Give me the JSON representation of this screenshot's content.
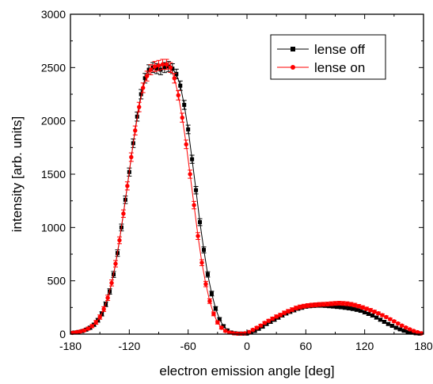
{
  "chart_data": {
    "type": "line",
    "title": "",
    "xlabel": "electron emission angle [deg]",
    "ylabel": "intensity [arb. units]",
    "xlim": [
      -180,
      180
    ],
    "ylim": [
      0,
      3000
    ],
    "xticks": [
      -180,
      -120,
      -60,
      0,
      60,
      120,
      180
    ],
    "yticks": [
      0,
      500,
      1000,
      1500,
      2000,
      2500,
      3000
    ],
    "grid": false,
    "legend_position": "top-right",
    "series": [
      {
        "name": "lense off",
        "color": "#000000",
        "marker": "square",
        "x": [
          -176,
          -172,
          -168,
          -164,
          -160,
          -156,
          -152,
          -148,
          -144,
          -140,
          -136,
          -132,
          -128,
          -124,
          -120,
          -116,
          -112,
          -108,
          -104,
          -100,
          -96,
          -92,
          -88,
          -84,
          -80,
          -76,
          -72,
          -68,
          -64,
          -60,
          -56,
          -52,
          -48,
          -44,
          -40,
          -36,
          -32,
          -28,
          -24,
          -20,
          -16,
          -12,
          -8,
          -4,
          0,
          4,
          8,
          12,
          16,
          20,
          24,
          28,
          32,
          36,
          40,
          44,
          48,
          52,
          56,
          60,
          64,
          68,
          72,
          76,
          80,
          84,
          88,
          92,
          96,
          100,
          104,
          108,
          112,
          116,
          120,
          124,
          128,
          132,
          136,
          140,
          144,
          148,
          152,
          156,
          160,
          164,
          168,
          172,
          176
        ],
        "y": [
          15,
          20,
          28,
          42,
          60,
          88,
          130,
          190,
          280,
          400,
          560,
          760,
          1000,
          1260,
          1520,
          1790,
          2040,
          2250,
          2400,
          2480,
          2500,
          2490,
          2480,
          2500,
          2510,
          2490,
          2440,
          2330,
          2150,
          1920,
          1640,
          1350,
          1050,
          790,
          560,
          380,
          240,
          140,
          75,
          35,
          15,
          8,
          5,
          5,
          5,
          15,
          30,
          50,
          70,
          95,
          115,
          135,
          155,
          175,
          195,
          210,
          225,
          240,
          250,
          260,
          265,
          268,
          270,
          270,
          268,
          265,
          262,
          258,
          255,
          250,
          245,
          238,
          230,
          220,
          205,
          190,
          175,
          155,
          135,
          115,
          95,
          78,
          60,
          45,
          32,
          22,
          14,
          8,
          5
        ],
        "yerr": [
          10,
          10,
          12,
          12,
          15,
          15,
          18,
          20,
          22,
          25,
          28,
          30,
          32,
          35,
          38,
          40,
          42,
          44,
          45,
          46,
          47,
          47,
          47,
          47,
          47,
          46,
          45,
          44,
          42,
          40,
          38,
          35,
          32,
          28,
          25,
          22,
          18,
          15,
          12,
          10,
          10,
          8,
          8,
          8,
          8,
          10,
          10,
          12,
          12,
          12,
          14,
          14,
          15,
          15,
          16,
          16,
          17,
          17,
          18,
          18,
          18,
          18,
          18,
          18,
          18,
          18,
          18,
          18,
          18,
          18,
          18,
          17,
          17,
          16,
          16,
          15,
          15,
          14,
          13,
          12,
          11,
          10,
          10,
          9,
          9,
          8,
          8,
          8,
          8
        ]
      },
      {
        "name": "lense on",
        "color": "#ff0000",
        "marker": "circle",
        "x": [
          -178,
          -174,
          -170,
          -166,
          -162,
          -158,
          -154,
          -150,
          -146,
          -142,
          -138,
          -134,
          -130,
          -126,
          -122,
          -118,
          -114,
          -110,
          -106,
          -102,
          -98,
          -94,
          -90,
          -86,
          -82,
          -78,
          -74,
          -70,
          -66,
          -62,
          -58,
          -54,
          -50,
          -46,
          -42,
          -38,
          -34,
          -30,
          -26,
          -22,
          -18,
          -14,
          -10,
          -6,
          -2,
          2,
          6,
          10,
          14,
          18,
          22,
          26,
          30,
          34,
          38,
          42,
          46,
          50,
          54,
          58,
          62,
          66,
          70,
          74,
          78,
          82,
          86,
          90,
          94,
          98,
          102,
          106,
          110,
          114,
          118,
          122,
          126,
          130,
          134,
          138,
          142,
          146,
          150,
          154,
          158,
          162,
          166,
          170,
          174,
          178
        ],
        "y": [
          12,
          18,
          25,
          35,
          52,
          75,
          110,
          160,
          235,
          340,
          480,
          660,
          880,
          1130,
          1390,
          1660,
          1910,
          2130,
          2310,
          2420,
          2480,
          2510,
          2520,
          2530,
          2530,
          2500,
          2400,
          2240,
          2030,
          1780,
          1500,
          1210,
          920,
          670,
          470,
          310,
          190,
          110,
          60,
          30,
          15,
          8,
          5,
          5,
          8,
          20,
          40,
          60,
          80,
          105,
          125,
          145,
          165,
          180,
          200,
          215,
          230,
          245,
          255,
          262,
          268,
          272,
          275,
          278,
          280,
          282,
          285,
          288,
          290,
          288,
          285,
          280,
          272,
          262,
          250,
          238,
          225,
          210,
          195,
          178,
          160,
          140,
          120,
          100,
          80,
          62,
          45,
          30,
          18,
          8
        ],
        "yerr": [
          10,
          10,
          12,
          12,
          14,
          15,
          18,
          20,
          22,
          25,
          28,
          30,
          32,
          35,
          38,
          40,
          42,
          44,
          45,
          46,
          47,
          47,
          47,
          47,
          47,
          46,
          45,
          44,
          42,
          40,
          38,
          35,
          32,
          28,
          25,
          22,
          18,
          15,
          12,
          10,
          10,
          8,
          8,
          8,
          8,
          10,
          10,
          12,
          12,
          12,
          14,
          14,
          15,
          15,
          16,
          16,
          17,
          17,
          18,
          18,
          18,
          18,
          18,
          18,
          18,
          18,
          18,
          18,
          18,
          18,
          18,
          17,
          17,
          16,
          16,
          15,
          15,
          14,
          13,
          12,
          11,
          10,
          10,
          9,
          9,
          8,
          8,
          8,
          8,
          8
        ]
      }
    ]
  }
}
